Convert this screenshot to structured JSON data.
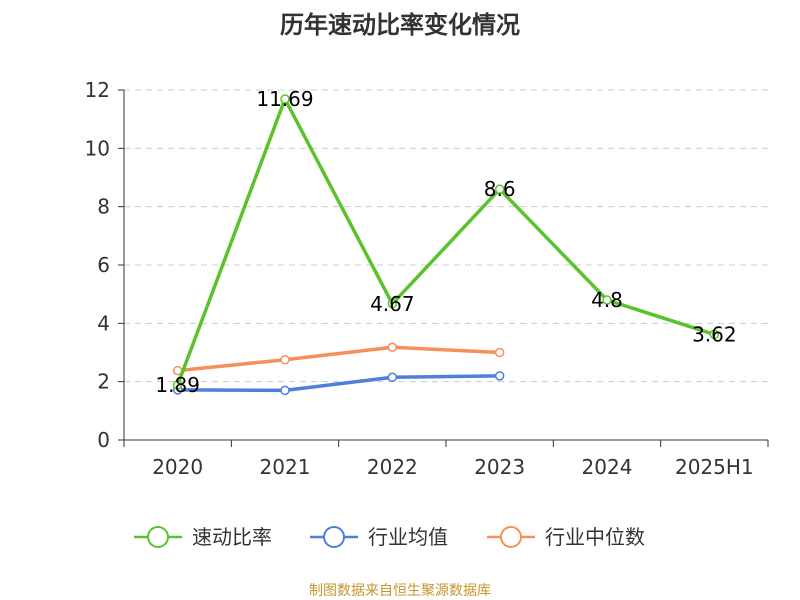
{
  "chart_data": {
    "type": "line",
    "title": "历年速动比率变化情况",
    "categories": [
      "2020",
      "2021",
      "2022",
      "2023",
      "2024",
      "2025H1"
    ],
    "ylim": [
      0,
      12
    ],
    "yticks": [
      0,
      2,
      4,
      6,
      8,
      10,
      12
    ],
    "grid": true,
    "legend_position": "bottom",
    "series": [
      {
        "name": "速动比率",
        "color": "#5cc22b",
        "values": [
          1.89,
          11.69,
          4.67,
          8.6,
          4.8,
          3.62
        ],
        "labels": [
          "1.89",
          "11.69",
          "4.67",
          "8.6",
          "4.8",
          "3.62"
        ],
        "show_labels": true
      },
      {
        "name": "行业均值",
        "color": "#4f7fd8",
        "values": [
          1.72,
          1.7,
          2.15,
          2.2,
          null,
          null
        ],
        "show_labels": false
      },
      {
        "name": "行业中位数",
        "color": "#f5905a",
        "values": [
          2.38,
          2.75,
          3.18,
          3.0,
          null,
          null
        ],
        "show_labels": false
      }
    ],
    "source": "制图数据来自恒生聚源数据库"
  }
}
